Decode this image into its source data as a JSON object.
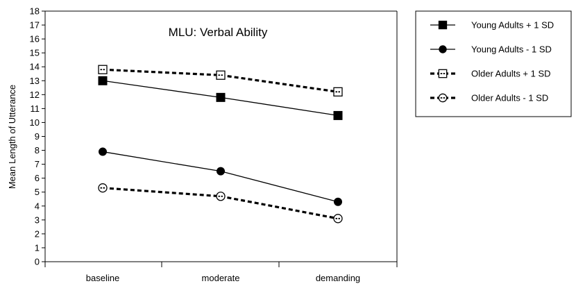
{
  "chart_data": {
    "type": "line",
    "title": "MLU:  Verbal Ability",
    "xlabel": "",
    "ylabel": "Mean Length of Utterance",
    "categories": [
      "baseline",
      "moderate",
      "demanding"
    ],
    "ylim": [
      0,
      18
    ],
    "yticks": [
      0,
      1,
      2,
      3,
      4,
      5,
      6,
      7,
      8,
      9,
      10,
      11,
      12,
      13,
      14,
      15,
      16,
      17,
      18
    ],
    "grid": false,
    "legend_position": "right",
    "series": [
      {
        "name": "Young Adults + 1 SD",
        "values": [
          13.0,
          11.8,
          10.5
        ],
        "line": "solid",
        "marker": "square-filled",
        "color": "#000000"
      },
      {
        "name": "Young Adults - 1 SD",
        "values": [
          7.9,
          6.5,
          4.3
        ],
        "line": "solid",
        "marker": "circle-filled",
        "color": "#000000"
      },
      {
        "name": "Older Adults + 1 SD",
        "values": [
          13.8,
          13.4,
          12.2
        ],
        "line": "dashed",
        "marker": "square-open",
        "color": "#000000"
      },
      {
        "name": "Older Adults - 1 SD",
        "values": [
          5.3,
          4.7,
          3.1
        ],
        "line": "dashed",
        "marker": "circle-open",
        "color": "#000000"
      }
    ]
  }
}
